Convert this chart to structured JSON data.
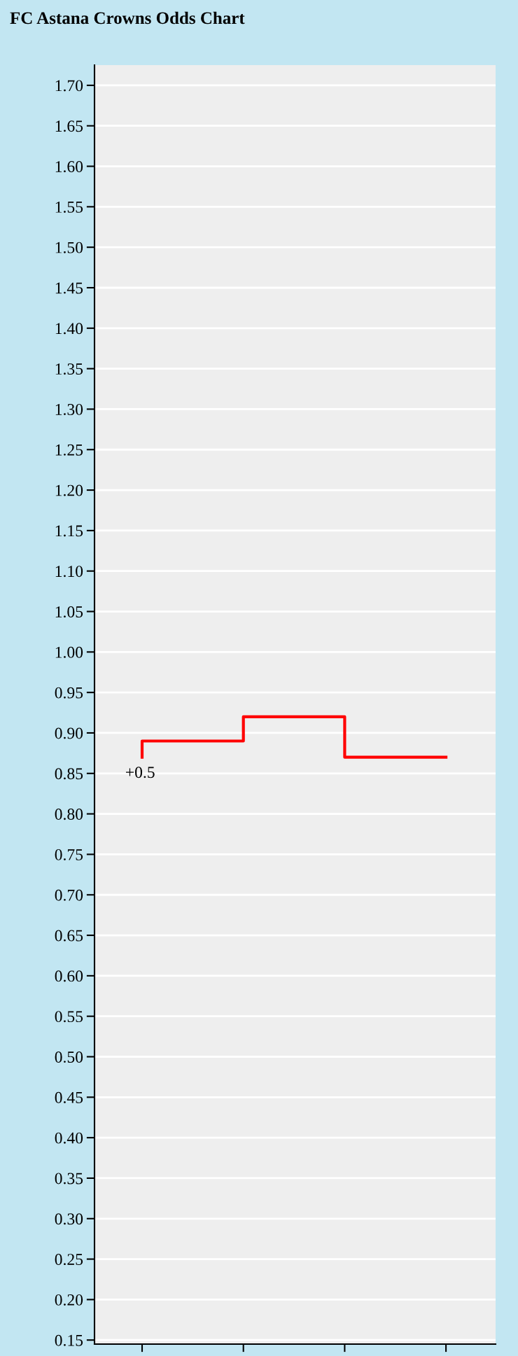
{
  "chart_data": {
    "type": "step",
    "title": "FC Astana Crowns Odds Chart",
    "categories": [
      null,
      null,
      null,
      null
    ],
    "series": [
      {
        "color": "#ff0000",
        "values": [
          0.87,
          0.89,
          0.92,
          0.87
        ]
      }
    ],
    "annotations": [
      "+0.5"
    ],
    "ylim": [
      0.145,
      1.725
    ],
    "yticks": [
      {
        "value": 0.15,
        "label": "0.15"
      },
      {
        "value": 0.2,
        "label": "0.20"
      },
      {
        "value": 0.25,
        "label": "0.25"
      },
      {
        "value": 0.3,
        "label": "0.30"
      },
      {
        "value": 0.35,
        "label": "0.35"
      },
      {
        "value": 0.4,
        "label": "0.40"
      },
      {
        "value": 0.45,
        "label": "0.45"
      },
      {
        "value": 0.5,
        "label": "0.50"
      },
      {
        "value": 0.55,
        "label": "0.55"
      },
      {
        "value": 0.6,
        "label": "0.60"
      },
      {
        "value": 0.65,
        "label": "0.65"
      },
      {
        "value": 0.7,
        "label": "0.70"
      },
      {
        "value": 0.75,
        "label": "0.75"
      },
      {
        "value": 0.8,
        "label": "0.80"
      },
      {
        "value": 0.85,
        "label": "0.85"
      },
      {
        "value": 0.9,
        "label": "0.90"
      },
      {
        "value": 0.95,
        "label": "0.95"
      },
      {
        "value": 1.0,
        "label": "1.00"
      },
      {
        "value": 1.05,
        "label": "1.05"
      },
      {
        "value": 1.1,
        "label": "1.10"
      },
      {
        "value": 1.15,
        "label": "1.15"
      },
      {
        "value": 1.2,
        "label": "1.20"
      },
      {
        "value": 1.25,
        "label": "1.25"
      },
      {
        "value": 1.3,
        "label": "1.30"
      },
      {
        "value": 1.35,
        "label": "1.35"
      },
      {
        "value": 1.4,
        "label": "1.40"
      },
      {
        "value": 1.45,
        "label": "1.45"
      },
      {
        "value": 1.5,
        "label": "1.50"
      },
      {
        "value": 1.55,
        "label": "1.55"
      },
      {
        "value": 1.6,
        "label": "1.60"
      },
      {
        "value": 1.65,
        "label": "1.65"
      },
      {
        "value": 1.7,
        "label": "1.70"
      }
    ],
    "grid": "y",
    "legend": false,
    "marker": "none",
    "line_style": "solid"
  }
}
